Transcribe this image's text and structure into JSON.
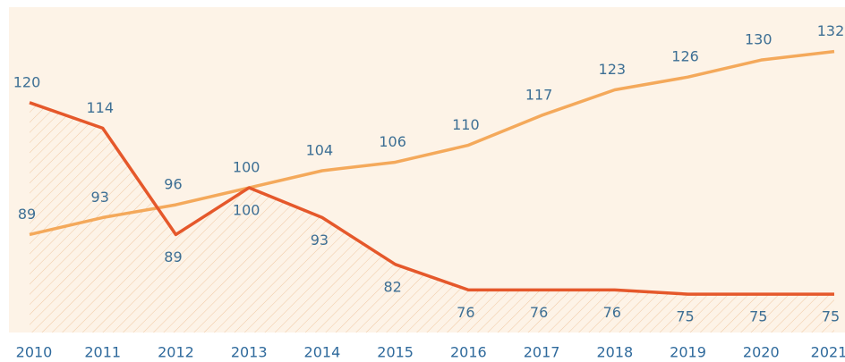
{
  "chart_data": {
    "type": "line",
    "categories": [
      "2010",
      "2011",
      "2012",
      "2013",
      "2014",
      "2015",
      "2016",
      "2017",
      "2018",
      "2019",
      "2020",
      "2021"
    ],
    "series": [
      {
        "color": "#f4a95b",
        "values": [
          89,
          93,
          96,
          100,
          104,
          106,
          110,
          117,
          123,
          126,
          130,
          132
        ]
      },
      {
        "color": "#e5582b",
        "values": [
          120,
          114,
          89,
          100,
          93,
          82,
          76,
          76,
          76,
          75,
          75,
          75
        ],
        "hatched_area": true
      }
    ],
    "ylim": [
      66,
      142
    ]
  }
}
